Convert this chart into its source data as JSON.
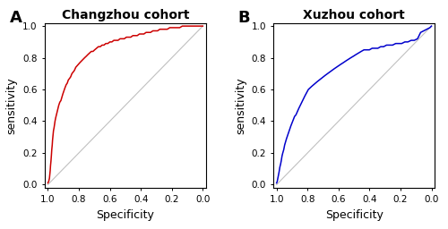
{
  "panel_A_title": "Changzhou cohort",
  "panel_B_title": "Xuzhou cohort",
  "panel_A_label": "A",
  "panel_B_label": "B",
  "xlabel": "Specificity",
  "ylabel": "sensitivity",
  "roc_A_x": [
    1.0,
    0.995,
    0.99,
    0.988,
    0.985,
    0.983,
    0.98,
    0.977,
    0.975,
    0.972,
    0.97,
    0.967,
    0.964,
    0.96,
    0.957,
    0.954,
    0.95,
    0.945,
    0.94,
    0.935,
    0.93,
    0.923,
    0.916,
    0.91,
    0.904,
    0.897,
    0.89,
    0.882,
    0.875,
    0.868,
    0.86,
    0.853,
    0.845,
    0.837,
    0.829,
    0.82,
    0.811,
    0.802,
    0.793,
    0.783,
    0.773,
    0.763,
    0.752,
    0.742,
    0.731,
    0.72,
    0.709,
    0.698,
    0.686,
    0.674,
    0.662,
    0.65,
    0.638,
    0.626,
    0.613,
    0.6,
    0.587,
    0.574,
    0.561,
    0.547,
    0.534,
    0.52,
    0.507,
    0.493,
    0.479,
    0.465,
    0.451,
    0.437,
    0.423,
    0.409,
    0.395,
    0.38,
    0.366,
    0.351,
    0.337,
    0.322,
    0.307,
    0.292,
    0.277,
    0.261,
    0.245,
    0.229,
    0.213,
    0.197,
    0.181,
    0.165,
    0.149,
    0.132,
    0.116,
    0.1,
    0.083,
    0.066,
    0.049,
    0.032,
    0.016,
    0.005,
    0.0
  ],
  "roc_A_y": [
    0.01,
    0.02,
    0.04,
    0.06,
    0.09,
    0.12,
    0.15,
    0.19,
    0.22,
    0.25,
    0.28,
    0.31,
    0.34,
    0.36,
    0.38,
    0.4,
    0.42,
    0.44,
    0.46,
    0.48,
    0.5,
    0.52,
    0.53,
    0.55,
    0.57,
    0.59,
    0.61,
    0.63,
    0.64,
    0.66,
    0.67,
    0.68,
    0.7,
    0.71,
    0.72,
    0.74,
    0.75,
    0.76,
    0.77,
    0.78,
    0.79,
    0.8,
    0.81,
    0.82,
    0.83,
    0.84,
    0.84,
    0.85,
    0.86,
    0.87,
    0.87,
    0.88,
    0.88,
    0.89,
    0.89,
    0.9,
    0.9,
    0.91,
    0.91,
    0.91,
    0.92,
    0.92,
    0.92,
    0.93,
    0.93,
    0.93,
    0.94,
    0.94,
    0.94,
    0.95,
    0.95,
    0.95,
    0.96,
    0.96,
    0.96,
    0.97,
    0.97,
    0.97,
    0.98,
    0.98,
    0.98,
    0.98,
    0.99,
    0.99,
    0.99,
    0.99,
    0.99,
    1.0,
    1.0,
    1.0,
    1.0,
    1.0,
    1.0,
    1.0,
    1.0,
    1.0,
    1.0
  ],
  "roc_B_x": [
    1.0,
    0.996,
    0.992,
    0.988,
    0.984,
    0.979,
    0.974,
    0.97,
    0.965,
    0.96,
    0.954,
    0.948,
    0.942,
    0.936,
    0.929,
    0.922,
    0.915,
    0.908,
    0.9,
    0.892,
    0.884,
    0.875,
    0.866,
    0.857,
    0.847,
    0.837,
    0.827,
    0.817,
    0.806,
    0.795,
    0.784,
    0.773,
    0.761,
    0.749,
    0.737,
    0.724,
    0.711,
    0.698,
    0.685,
    0.671,
    0.657,
    0.643,
    0.629,
    0.614,
    0.599,
    0.584,
    0.568,
    0.553,
    0.537,
    0.521,
    0.504,
    0.488,
    0.471,
    0.454,
    0.436,
    0.419,
    0.401,
    0.383,
    0.365,
    0.346,
    0.328,
    0.309,
    0.29,
    0.27,
    0.251,
    0.231,
    0.211,
    0.192,
    0.172,
    0.152,
    0.131,
    0.111,
    0.09,
    0.07,
    0.05,
    0.03,
    0.01,
    0.0
  ],
  "roc_B_y": [
    0.01,
    0.02,
    0.04,
    0.06,
    0.08,
    0.11,
    0.13,
    0.15,
    0.18,
    0.2,
    0.22,
    0.25,
    0.27,
    0.29,
    0.31,
    0.33,
    0.35,
    0.37,
    0.39,
    0.41,
    0.43,
    0.44,
    0.46,
    0.48,
    0.5,
    0.52,
    0.54,
    0.56,
    0.58,
    0.6,
    0.61,
    0.62,
    0.63,
    0.64,
    0.65,
    0.66,
    0.67,
    0.68,
    0.69,
    0.7,
    0.71,
    0.72,
    0.73,
    0.74,
    0.75,
    0.76,
    0.77,
    0.78,
    0.79,
    0.8,
    0.81,
    0.82,
    0.83,
    0.84,
    0.85,
    0.85,
    0.85,
    0.86,
    0.86,
    0.86,
    0.87,
    0.87,
    0.88,
    0.88,
    0.88,
    0.89,
    0.89,
    0.89,
    0.9,
    0.9,
    0.91,
    0.91,
    0.92,
    0.96,
    0.97,
    0.98,
    0.99,
    1.0
  ],
  "color_A": "#cc0000",
  "color_B": "#0000cc",
  "diag_color": "#c0c0c0",
  "xticks": [
    1.0,
    0.8,
    0.6,
    0.4,
    0.2,
    0.0
  ],
  "yticks": [
    0.0,
    0.2,
    0.4,
    0.6,
    0.8,
    1.0
  ],
  "xtick_labels": [
    "1.0",
    "0.8",
    "0.6",
    "0.4",
    "0.2",
    "0.0"
  ],
  "ytick_labels": [
    "0.0",
    "0.2",
    "0.4",
    "0.6",
    "0.8",
    "1.0"
  ],
  "bg_color": "#ffffff",
  "title_fontsize": 10,
  "label_fontsize": 9,
  "tick_fontsize": 7.5,
  "panel_label_fontsize": 13
}
